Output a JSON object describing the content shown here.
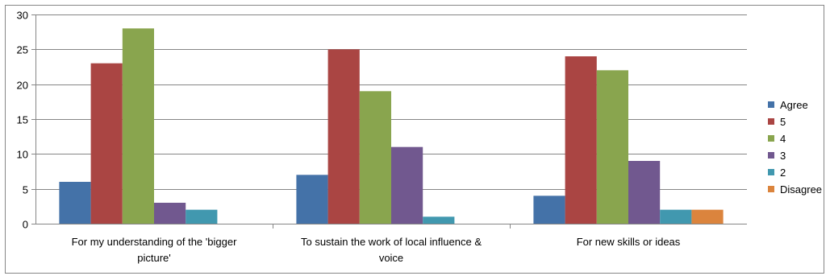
{
  "chart_data": {
    "type": "bar",
    "title": "",
    "xlabel": "",
    "ylabel": "",
    "categories": [
      [
        "For my understanding of the 'bigger",
        "picture'"
      ],
      [
        "To sustain the work of local influence &",
        "voice"
      ],
      [
        "For new skills or ideas"
      ]
    ],
    "series": [
      {
        "name": "Agree",
        "color": "#4472A8",
        "values": [
          6,
          7,
          4
        ]
      },
      {
        "name": "5",
        "color": "#AA4543",
        "values": [
          23,
          25,
          24
        ]
      },
      {
        "name": "4",
        "color": "#89A54E",
        "values": [
          28,
          19,
          22
        ]
      },
      {
        "name": "3",
        "color": "#71588F",
        "values": [
          3,
          11,
          9
        ]
      },
      {
        "name": "2",
        "color": "#4198AF",
        "values": [
          2,
          1,
          2
        ]
      },
      {
        "name": "Disagree",
        "color": "#DB843D",
        "values": [
          0,
          0,
          2
        ]
      }
    ],
    "ylim": [
      0,
      30
    ],
    "yticks": [
      0,
      5,
      10,
      15,
      20,
      25,
      30
    ],
    "grid": true,
    "legend_position": "right"
  }
}
